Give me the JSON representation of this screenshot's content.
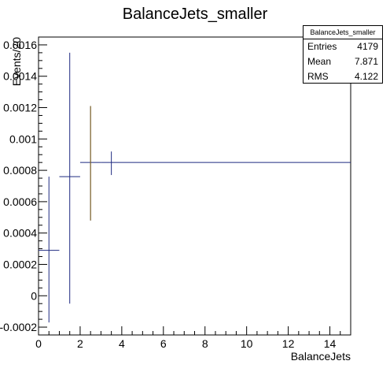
{
  "chart_data": {
    "type": "scatter",
    "title": "BalanceJets_smaller",
    "xlabel": "BalanceJets",
    "ylabel": "Events/20",
    "xlim": [
      0,
      15
    ],
    "ylim": [
      -0.00025,
      0.00165
    ],
    "x_ticks": [
      "0",
      "2",
      "4",
      "6",
      "8",
      "10",
      "12",
      "14"
    ],
    "y_ticks": [
      "-0.0002",
      "0",
      "0.0002",
      "0.0004",
      "0.0006",
      "0.0008",
      "0.001",
      "0.0012",
      "0.0014",
      "0.0016"
    ],
    "series": [
      {
        "color": "#1f2a80",
        "points": [
          {
            "x": 0.5,
            "x_low": 0,
            "x_high": 1,
            "y": 0.00029,
            "y_low": -0.00017,
            "y_high": 0.00076
          },
          {
            "x": 1.5,
            "x_low": 1,
            "x_high": 2,
            "y": 0.00076,
            "y_low": -5e-05,
            "y_high": 0.00155
          },
          {
            "x": 2.5,
            "x_low": 2,
            "x_high": 3,
            "y": 0.00085,
            "y_low": 0.00048,
            "y_high": 0.00121
          },
          {
            "x": 3.5,
            "x_low": 3,
            "x_high": 15,
            "y": 0.00085,
            "y_low": 0.00077,
            "y_high": 0.00092
          }
        ]
      }
    ],
    "error_bar_color": "#8b6914",
    "grid": false,
    "stats_box": {
      "title": "BalanceJets_smaller",
      "rows": [
        {
          "label": "Entries",
          "value": "4179"
        },
        {
          "label": "Mean",
          "value": "7.871"
        },
        {
          "label": "RMS",
          "value": "4.122"
        }
      ]
    }
  }
}
